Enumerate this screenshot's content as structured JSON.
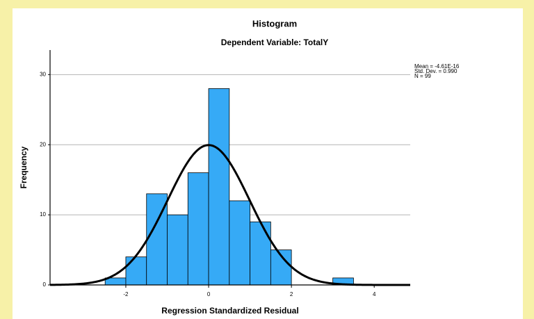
{
  "chart_data": {
    "type": "histogram",
    "title": "Histogram",
    "subtitle": "Dependent Variable: TotalY",
    "x_label": "Regression Standardized Residual",
    "y_label": "Frequency",
    "bins": [
      -2.5,
      -2,
      -1.5,
      -1,
      -0.5,
      0,
      0.5,
      1,
      1.5,
      2,
      2.5,
      3,
      3.5
    ],
    "values": [
      1,
      4,
      13,
      10,
      16,
      28,
      12,
      9,
      5,
      0,
      0,
      1
    ],
    "color": "#36aaf6",
    "xlim": [
      -3.83,
      4.87
    ],
    "xticks": [
      -2,
      0,
      2,
      4
    ],
    "ylim": [
      0,
      33.5
    ],
    "yticks": [
      0,
      10,
      20,
      30
    ],
    "grid": true,
    "stats": [
      {
        "value": -4.61e-16,
        "label": "Mean = -4.61E-16"
      },
      {
        "value": 0.99,
        "label": "Std. Dev. = 0.990"
      },
      {
        "value": 99,
        "label": "N = 99"
      }
    ],
    "curve_color": "#000000"
  }
}
